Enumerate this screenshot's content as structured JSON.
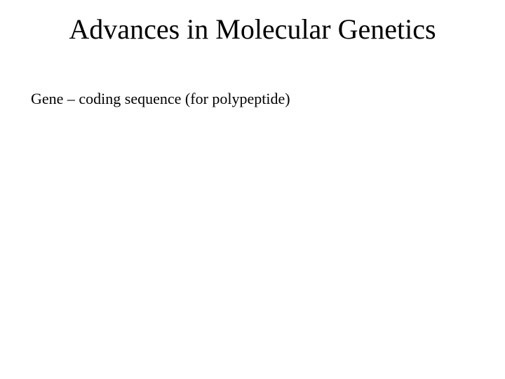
{
  "slide": {
    "title": "Advances in Molecular Genetics",
    "body": "Gene – coding sequence (for polypeptide)",
    "background_color": "#ffffff",
    "text_color": "#000000",
    "title_fontsize": 40,
    "body_fontsize": 22,
    "font_family": "Times New Roman"
  }
}
